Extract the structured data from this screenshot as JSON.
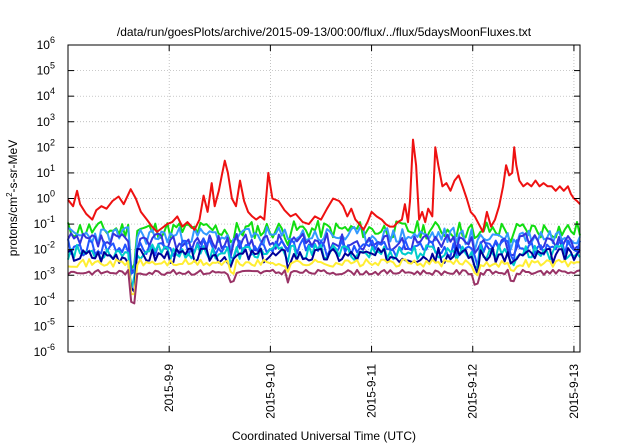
{
  "chart_data": {
    "type": "line",
    "title": "/data/run/goesPlots/archive/2015-09-13/00:00/flux/../flux/5daysMoonFluxes.txt",
    "xlabel": "Coordinated Universal Time (UTC)",
    "ylabel": {
      "prefix": "protons/cm",
      "sup": "2",
      "suffix": "-s-sr-MeV"
    },
    "xlim": [
      0,
      5.06
    ],
    "ylim": [
      -6,
      6
    ],
    "y_scale": "log",
    "y_ticks": [
      {
        "exp": "-6"
      },
      {
        "exp": "-5"
      },
      {
        "exp": "-4"
      },
      {
        "exp": "-3"
      },
      {
        "exp": "-2"
      },
      {
        "exp": "-1"
      },
      {
        "exp": "0"
      },
      {
        "exp": "1"
      },
      {
        "exp": "2"
      },
      {
        "exp": "3"
      },
      {
        "exp": "4"
      },
      {
        "exp": "5"
      },
      {
        "exp": "6"
      }
    ],
    "x_ticks": [
      {
        "x": 1.0,
        "label": "2015-9-9"
      },
      {
        "x": 2.0,
        "label": "2015-9-10"
      },
      {
        "x": 3.0,
        "label": "2015-9-11"
      },
      {
        "x": 4.0,
        "label": "2015-9-12"
      },
      {
        "x": 5.0,
        "label": "2015-9-13"
      }
    ],
    "grid": true,
    "series": [
      {
        "color": "#ee1111",
        "points": [
          [
            0.0,
            0.9
          ],
          [
            0.05,
            0.5
          ],
          [
            0.09,
            2.0
          ],
          [
            0.12,
            0.6
          ],
          [
            0.18,
            0.25
          ],
          [
            0.24,
            0.15
          ],
          [
            0.28,
            0.35
          ],
          [
            0.33,
            0.5
          ],
          [
            0.38,
            0.4
          ],
          [
            0.44,
            0.8
          ],
          [
            0.5,
            1.2
          ],
          [
            0.55,
            0.6
          ],
          [
            0.62,
            2.3
          ],
          [
            0.67,
            1.0
          ],
          [
            0.72,
            0.3
          ],
          [
            0.78,
            0.15
          ],
          [
            0.83,
            0.08
          ],
          [
            0.88,
            0.05
          ],
          [
            0.93,
            0.07
          ],
          [
            0.98,
            0.1
          ],
          [
            1.03,
            0.12
          ],
          [
            1.08,
            0.2
          ],
          [
            1.13,
            0.08
          ],
          [
            1.18,
            0.12
          ],
          [
            1.25,
            0.06
          ],
          [
            1.3,
            0.15
          ],
          [
            1.34,
            1.3
          ],
          [
            1.38,
            0.3
          ],
          [
            1.42,
            4.0
          ],
          [
            1.45,
            0.5
          ],
          [
            1.49,
            2.0
          ],
          [
            1.52,
            8.0
          ],
          [
            1.55,
            30.0
          ],
          [
            1.58,
            10.0
          ],
          [
            1.62,
            1.0
          ],
          [
            1.66,
            0.5
          ],
          [
            1.7,
            5.0
          ],
          [
            1.74,
            0.8
          ],
          [
            1.78,
            0.3
          ],
          [
            1.82,
            0.2
          ],
          [
            1.86,
            0.15
          ],
          [
            1.9,
            0.2
          ],
          [
            1.94,
            0.15
          ],
          [
            1.98,
            10.0
          ],
          [
            2.02,
            1.0
          ],
          [
            2.08,
            0.8
          ],
          [
            2.14,
            0.35
          ],
          [
            2.2,
            0.2
          ],
          [
            2.25,
            0.25
          ],
          [
            2.32,
            0.12
          ],
          [
            2.38,
            0.1
          ],
          [
            2.44,
            0.2
          ],
          [
            2.5,
            0.15
          ],
          [
            2.56,
            0.4
          ],
          [
            2.62,
            1.0
          ],
          [
            2.68,
            0.8
          ],
          [
            2.72,
            0.5
          ],
          [
            2.76,
            0.2
          ],
          [
            2.8,
            0.4
          ],
          [
            2.84,
            0.15
          ],
          [
            2.88,
            0.1
          ],
          [
            2.92,
            0.06
          ],
          [
            2.96,
            0.12
          ],
          [
            3.0,
            0.3
          ],
          [
            3.05,
            0.2
          ],
          [
            3.1,
            0.15
          ],
          [
            3.14,
            0.1
          ],
          [
            3.18,
            0.08
          ],
          [
            3.22,
            0.08
          ],
          [
            3.26,
            0.12
          ],
          [
            3.3,
            0.15
          ],
          [
            3.33,
            0.6
          ],
          [
            3.36,
            0.12
          ],
          [
            3.38,
            0.8
          ],
          [
            3.41,
            200
          ],
          [
            3.44,
            20
          ],
          [
            3.47,
            0.15
          ],
          [
            3.5,
            0.3
          ],
          [
            3.53,
            0.12
          ],
          [
            3.56,
            0.4
          ],
          [
            3.6,
            0.2
          ],
          [
            3.63,
            100
          ],
          [
            3.66,
            20
          ],
          [
            3.7,
            3.0
          ],
          [
            3.74,
            4.0
          ],
          [
            3.78,
            2.0
          ],
          [
            3.82,
            5.0
          ],
          [
            3.86,
            8.0
          ],
          [
            3.9,
            3.0
          ],
          [
            3.94,
            1.0
          ],
          [
            3.98,
            0.3
          ],
          [
            4.02,
            0.2
          ],
          [
            4.06,
            0.1
          ],
          [
            4.1,
            0.05
          ],
          [
            4.14,
            0.3
          ],
          [
            4.18,
            0.08
          ],
          [
            4.22,
            0.15
          ],
          [
            4.26,
            0.5
          ],
          [
            4.3,
            3.0
          ],
          [
            4.33,
            20.0
          ],
          [
            4.36,
            8.0
          ],
          [
            4.39,
            10.0
          ],
          [
            4.41,
            100
          ],
          [
            4.43,
            20
          ],
          [
            4.46,
            5.0
          ],
          [
            4.5,
            3.0
          ],
          [
            4.54,
            4.0
          ],
          [
            4.58,
            3.0
          ],
          [
            4.62,
            5.0
          ],
          [
            4.66,
            3.0
          ],
          [
            4.7,
            4.0
          ],
          [
            4.74,
            3.0
          ],
          [
            4.78,
            3.0
          ],
          [
            4.82,
            2.0
          ],
          [
            4.86,
            3.0
          ],
          [
            4.9,
            2.0
          ],
          [
            4.94,
            3.0
          ],
          [
            4.97,
            1.5
          ],
          [
            5.0,
            1.0
          ],
          [
            5.03,
            0.8
          ],
          [
            5.06,
            0.6
          ]
        ]
      },
      {
        "color": "#11dd11",
        "base": 0.06,
        "jitter": 0.35,
        "seed": 11
      },
      {
        "color": "#3399ff",
        "base": 0.035,
        "jitter": 0.35,
        "seed": 23
      },
      {
        "color": "#3333dd",
        "base": 0.02,
        "jitter": 0.35,
        "seed": 37
      },
      {
        "color": "#2255ff",
        "base": 0.012,
        "jitter": 0.35,
        "seed": 41
      },
      {
        "color": "#00cccc",
        "base": 0.008,
        "jitter": 0.3,
        "seed": 53
      },
      {
        "color": "#000099",
        "base": 0.006,
        "jitter": 0.3,
        "seed": 67
      },
      {
        "color": "#ffee33",
        "base": 0.003,
        "jitter": 0.15,
        "seed": 71
      },
      {
        "color": "#993366",
        "base": 0.0013,
        "jitter": 0.1,
        "seed": 83
      }
    ],
    "dips": [
      {
        "x": 0.63,
        "factor": 0.06
      },
      {
        "x": 1.62,
        "factor": 0.4
      },
      {
        "x": 2.17,
        "factor": 0.5
      },
      {
        "x": 4.03,
        "factor": 0.35
      },
      {
        "x": 4.4,
        "factor": 0.4
      }
    ]
  }
}
